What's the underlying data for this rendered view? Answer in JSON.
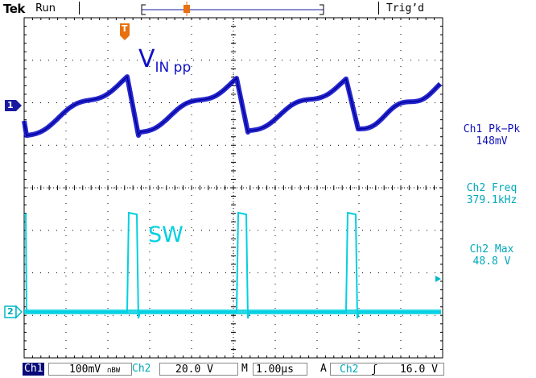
{
  "header": {
    "brand": "Tek",
    "run_state": "Run",
    "trigger_status": "Trig’d"
  },
  "traces": {
    "ch1_label_main": "V",
    "ch1_label_sub": "IN pp",
    "ch2_label": "SW",
    "ch1_marker": "1",
    "ch2_marker": "2",
    "trigger_marker": "T"
  },
  "measurements": [
    {
      "title": "Ch1 Pk−Pk",
      "value": "148mV",
      "color": "#1010b8"
    },
    {
      "title": "Ch2 Freq",
      "value": "379.1kHz",
      "color": "#00a8b8"
    },
    {
      "title": "Ch2 Max",
      "value": "48.8 V",
      "color": "#00a8b8"
    }
  ],
  "footer": {
    "ch1_tag": "Ch1",
    "ch1_scale": "100mV",
    "ch1_bw": "∩BW",
    "ch2_tag": "Ch2",
    "ch2_scale": "20.0 V",
    "timebase_tag": "M",
    "timebase": "1.00µs",
    "acq_tag": "A",
    "trig_source": "Ch2",
    "trig_slope": "ʃ",
    "trig_level": "16.0 V"
  },
  "colors": {
    "ch1": "#1010c8",
    "ch2": "#00d0e0",
    "grid": "#000000"
  }
}
